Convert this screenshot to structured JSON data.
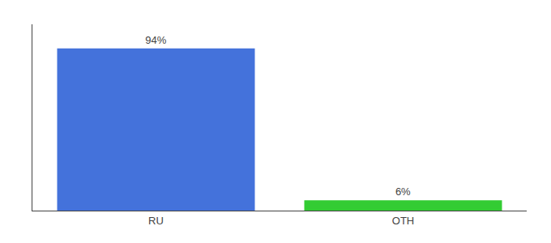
{
  "chart_data": {
    "type": "bar",
    "categories": [
      "RU",
      "OTH"
    ],
    "values": [
      94,
      6
    ],
    "value_labels": [
      "94%",
      "6%"
    ],
    "colors": [
      "#4472db",
      "#33cc33"
    ],
    "ylim": [
      0,
      108
    ],
    "data_labels": true,
    "tick_labels": "x",
    "grid": false
  }
}
